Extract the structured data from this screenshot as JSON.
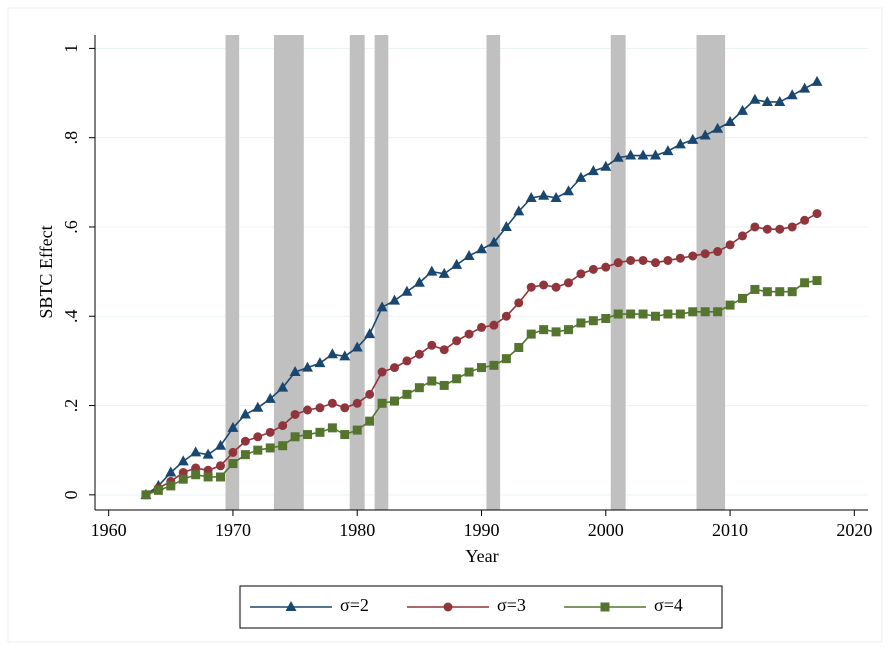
{
  "chart_data": {
    "type": "line",
    "x_label": "Year",
    "y_label": "SBTC Effect",
    "x": [
      1963,
      1964,
      1965,
      1966,
      1967,
      1968,
      1969,
      1970,
      1971,
      1972,
      1973,
      1974,
      1975,
      1976,
      1977,
      1978,
      1979,
      1980,
      1981,
      1982,
      1983,
      1984,
      1985,
      1986,
      1987,
      1988,
      1989,
      1990,
      1991,
      1992,
      1993,
      1994,
      1995,
      1996,
      1997,
      1998,
      1999,
      2000,
      2001,
      2002,
      2003,
      2004,
      2005,
      2006,
      2007,
      2008,
      2009,
      2010,
      2011,
      2012,
      2013,
      2014,
      2015,
      2016,
      2017
    ],
    "series": [
      {
        "name": "σ=2",
        "color": "#1a476f",
        "marker": "triangle",
        "values": [
          0,
          0.02,
          0.05,
          0.075,
          0.095,
          0.09,
          0.11,
          0.15,
          0.18,
          0.195,
          0.215,
          0.24,
          0.275,
          0.285,
          0.295,
          0.315,
          0.31,
          0.33,
          0.36,
          0.42,
          0.435,
          0.455,
          0.475,
          0.5,
          0.495,
          0.515,
          0.535,
          0.55,
          0.565,
          0.6,
          0.635,
          0.665,
          0.67,
          0.665,
          0.68,
          0.71,
          0.725,
          0.735,
          0.755,
          0.76,
          0.76,
          0.76,
          0.77,
          0.785,
          0.795,
          0.805,
          0.82,
          0.835,
          0.86,
          0.885,
          0.88,
          0.88,
          0.895,
          0.91,
          0.925
        ]
      },
      {
        "name": "σ=3",
        "color": "#90353b",
        "marker": "circle",
        "values": [
          0,
          0.015,
          0.03,
          0.05,
          0.06,
          0.055,
          0.065,
          0.095,
          0.12,
          0.13,
          0.14,
          0.155,
          0.18,
          0.19,
          0.195,
          0.205,
          0.195,
          0.205,
          0.225,
          0.275,
          0.285,
          0.3,
          0.315,
          0.335,
          0.325,
          0.345,
          0.36,
          0.375,
          0.38,
          0.4,
          0.43,
          0.465,
          0.47,
          0.465,
          0.475,
          0.495,
          0.505,
          0.51,
          0.52,
          0.525,
          0.525,
          0.52,
          0.525,
          0.53,
          0.535,
          0.54,
          0.545,
          0.56,
          0.58,
          0.6,
          0.595,
          0.595,
          0.6,
          0.615,
          0.63
        ]
      },
      {
        "name": "σ=4",
        "color": "#55752f",
        "marker": "square",
        "values": [
          0,
          0.01,
          0.02,
          0.035,
          0.045,
          0.04,
          0.04,
          0.07,
          0.09,
          0.1,
          0.105,
          0.11,
          0.13,
          0.135,
          0.14,
          0.15,
          0.135,
          0.145,
          0.165,
          0.205,
          0.21,
          0.225,
          0.24,
          0.255,
          0.245,
          0.26,
          0.275,
          0.285,
          0.29,
          0.305,
          0.33,
          0.36,
          0.37,
          0.365,
          0.37,
          0.385,
          0.39,
          0.395,
          0.405,
          0.405,
          0.405,
          0.4,
          0.405,
          0.405,
          0.41,
          0.41,
          0.41,
          0.425,
          0.44,
          0.46,
          0.455,
          0.455,
          0.455,
          0.475,
          0.48
        ]
      }
    ],
    "shading": [
      [
        1969.4,
        1970.5
      ],
      [
        1973.3,
        1975.7
      ],
      [
        1979.4,
        1980.6
      ],
      [
        1981.4,
        1982.5
      ],
      [
        1990.4,
        1991.5
      ],
      [
        2000.4,
        2001.6
      ],
      [
        2007.3,
        2009.6
      ]
    ],
    "shading_color": "#c0c0c0",
    "xlim": [
      1958.9,
      2021.1
    ],
    "xticks": [
      1960,
      1970,
      1980,
      1990,
      2000,
      2010,
      2020
    ],
    "ylim": [
      -0.034,
      1.03
    ],
    "yticks": [
      0,
      {
        "value": 0.2,
        "label": ".2"
      },
      {
        "value": 0.4,
        "label": ".4"
      },
      {
        "value": 0.6,
        "label": ".6"
      },
      {
        "value": 0.8,
        "label": ".8"
      },
      1
    ],
    "grid": true,
    "legend": "bottom"
  }
}
